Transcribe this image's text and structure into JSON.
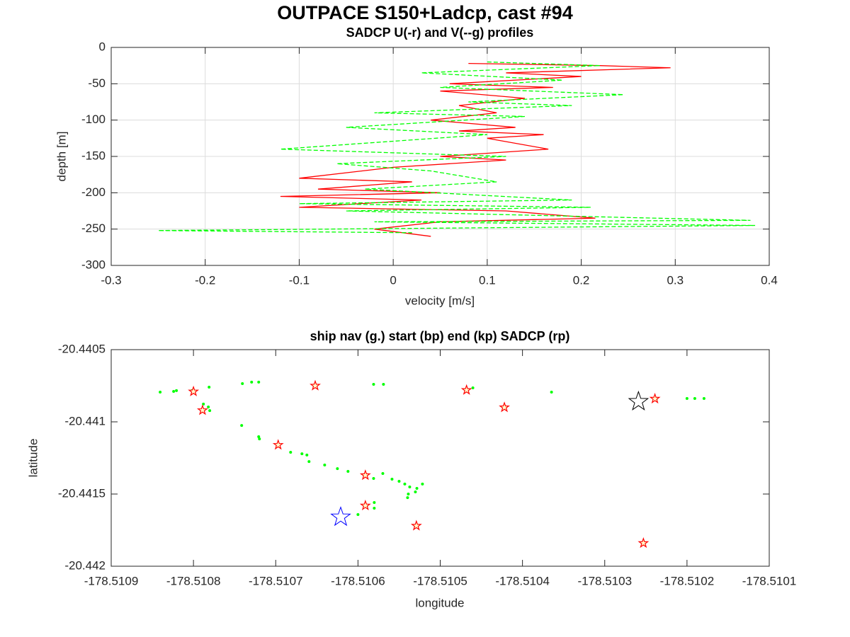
{
  "chart_data": [
    {
      "type": "line",
      "title": "OUTPACE S150+Ladcp, cast #94",
      "subtitle": "SADCP U(-r) and V(--g) profiles",
      "xlabel": "velocity [m/s]",
      "ylabel": "depth [m]",
      "xlim": [
        -0.3,
        0.4
      ],
      "xticks": [
        -0.3,
        -0.2,
        -0.1,
        0,
        0.1,
        0.2,
        0.3,
        0.4
      ],
      "ylim": [
        -300,
        0
      ],
      "yticks": [
        -300,
        -250,
        -200,
        -150,
        -100,
        -50,
        0
      ],
      "grid": true,
      "series": [
        {
          "color": "#ff0000",
          "linestyle": "solid",
          "x": [
            0.08,
            0.22,
            0.295,
            0.12,
            0.2,
            0.06,
            0.17,
            0.05,
            0.14,
            0.07,
            0.11,
            0.04,
            0.13,
            0.07,
            0.16,
            0.1,
            0.165,
            0.05,
            0.12,
            0.0,
            -0.1,
            0.02,
            -0.08,
            0.05,
            -0.12,
            0.03,
            -0.1,
            0.12,
            0.215,
            0.05,
            -0.02,
            0.04
          ],
          "y": [
            -22,
            -25,
            -28,
            -35,
            -40,
            -50,
            -55,
            -60,
            -70,
            -80,
            -90,
            -100,
            -110,
            -115,
            -120,
            -125,
            -140,
            -150,
            -155,
            -165,
            -180,
            -185,
            -195,
            -200,
            -205,
            -210,
            -220,
            -225,
            -235,
            -240,
            -250,
            -260
          ]
        },
        {
          "color": "#00ff00",
          "linestyle": "dashed",
          "x": [
            0.1,
            0.22,
            0.03,
            0.18,
            0.05,
            0.245,
            0.08,
            0.19,
            -0.02,
            0.14,
            -0.05,
            0.1,
            -0.12,
            0.12,
            -0.06,
            0.04,
            0.11,
            -0.03,
            0.19,
            -0.1,
            0.21,
            -0.05,
            0.38,
            -0.02,
            0.385,
            -0.25,
            0.02
          ],
          "y": [
            -20,
            -25,
            -35,
            -45,
            -55,
            -65,
            -75,
            -80,
            -90,
            -95,
            -110,
            -120,
            -140,
            -150,
            -160,
            -170,
            -185,
            -195,
            -210,
            -215,
            -220,
            -225,
            -238,
            -240,
            -245,
            -252,
            -255
          ]
        }
      ]
    },
    {
      "type": "scatter",
      "title": "ship nav (g.) start (bp) end (kp) SADCP (rp)",
      "xlabel": "longitude",
      "ylabel": "latitude",
      "xlim": [
        -178.5109,
        -178.5101
      ],
      "xticks": [
        -178.5109,
        -178.5108,
        -178.5107,
        -178.5106,
        -178.5105,
        -178.5104,
        -178.5103,
        -178.5102,
        -178.5101
      ],
      "ylim": [
        -20.442,
        -20.4405
      ],
      "yticks": [
        -20.442,
        -20.4415,
        -20.441,
        -20.4405
      ],
      "grid": false,
      "series": [
        {
          "color": "#00ff00",
          "marker": "dot",
          "x": [
            -178.5108405,
            -178.5108241,
            -178.5108207,
            -178.5108017,
            -178.5107879,
            -178.5107819,
            -178.5107802,
            -178.510781,
            -178.5107405,
            -178.5107293,
            -178.5107207,
            -178.5107414,
            -178.5107207,
            -178.5107198,
            -178.5106974,
            -178.5106819,
            -178.5106681,
            -178.5106621,
            -178.5106595,
            -178.5106405,
            -178.510625,
            -178.5106121,
            -178.5105897,
            -178.510581,
            -178.5105698,
            -178.5105586,
            -178.51055,
            -178.5105431,
            -178.5105371,
            -178.5105284,
            -178.5105216,
            -178.5105388,
            -178.5105302,
            -178.5105397,
            -178.5105802,
            -178.5105802,
            -178.5105897,
            -178.5106,
            -178.510581,
            -178.510569,
            -178.5104603,
            -178.5103647,
            -178.5102371,
            -178.5102,
            -178.5101905,
            -178.5101793
          ],
          "y": [
            -20.440794,
            -20.440789,
            -20.440784,
            -20.440784,
            -20.440877,
            -20.440897,
            -20.440922,
            -20.44076,
            -20.440735,
            -20.440725,
            -20.440725,
            -20.441025,
            -20.441103,
            -20.441118,
            -20.441167,
            -20.441211,
            -20.441221,
            -20.44123,
            -20.441275,
            -20.441299,
            -20.441324,
            -20.441343,
            -20.441368,
            -20.441392,
            -20.441358,
            -20.441397,
            -20.441412,
            -20.441431,
            -20.441451,
            -20.441461,
            -20.441431,
            -20.4415,
            -20.441485,
            -20.441525,
            -20.441559,
            -20.441598,
            -20.441588,
            -20.441642,
            -20.44074,
            -20.44074,
            -20.440765,
            -20.440794,
            -20.440838,
            -20.440838,
            -20.440838,
            -20.440838
          ]
        },
        {
          "color": "#ff0000",
          "marker": "star",
          "x": [
            -178.5108,
            -178.510789,
            -178.510697,
            -178.510652,
            -178.510591,
            -178.510591,
            -178.510529,
            -178.510468,
            -178.510422,
            -178.510239,
            -178.510253
          ],
          "y": [
            -20.44079,
            -20.44092,
            -20.44116,
            -20.44075,
            -20.44137,
            -20.44158,
            -20.44172,
            -20.44078,
            -20.4409,
            -20.44084,
            -20.44184
          ]
        },
        {
          "color": "#0000ff",
          "marker": "big-star",
          "x": [
            -178.510621
          ],
          "y": [
            -20.44166
          ]
        },
        {
          "color": "#000000",
          "marker": "big-star",
          "x": [
            -178.510259
          ],
          "y": [
            -20.44086
          ]
        }
      ]
    }
  ]
}
